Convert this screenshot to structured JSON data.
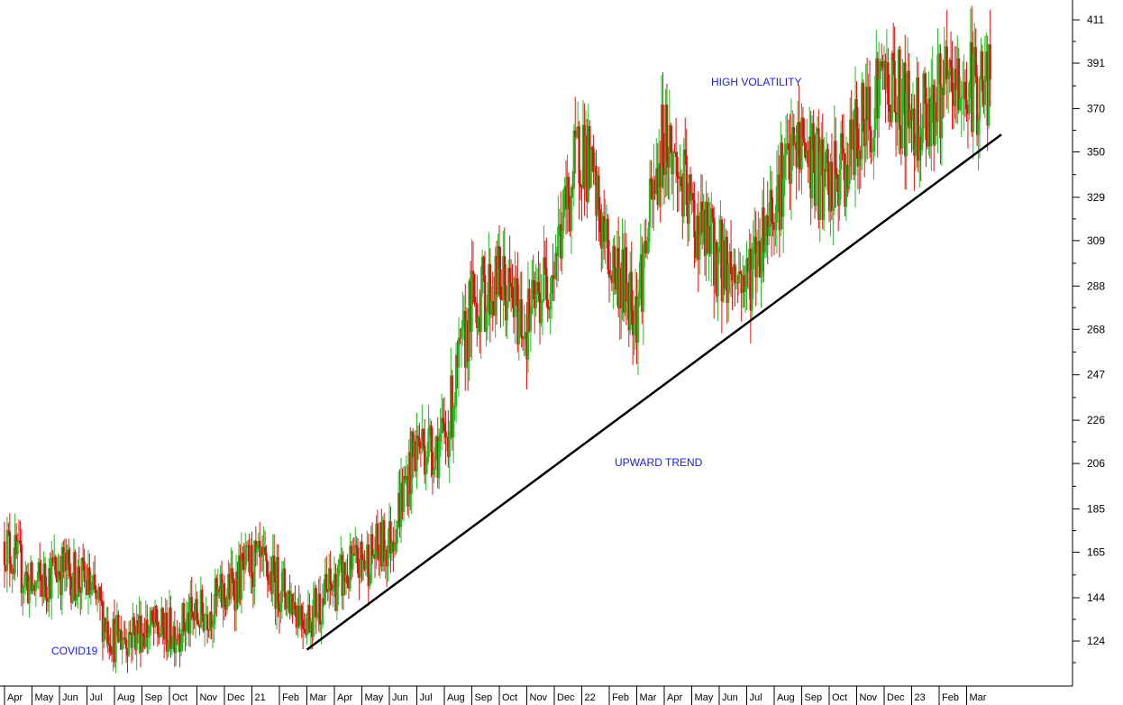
{
  "chart_data": {
    "type": "candlestick",
    "y_axis": {
      "position": "right",
      "ticks": [
        124,
        144,
        165,
        185,
        206,
        226,
        247,
        268,
        288,
        309,
        329,
        350,
        370,
        391,
        411
      ],
      "range": [
        110,
        425
      ]
    },
    "x_axis": {
      "labels": [
        "Apr",
        "May",
        "Jun",
        "Jul",
        "Aug",
        "Sep",
        "Oct",
        "Nov",
        "Dec",
        "21",
        "Feb",
        "Mar",
        "Apr",
        "May",
        "Jun",
        "Jul",
        "Aug",
        "Sep",
        "Oct",
        "Nov",
        "Dec",
        "22",
        "Feb",
        "Mar",
        "Apr",
        "May",
        "Jun",
        "Jul",
        "Aug",
        "Sep",
        "Oct",
        "Nov",
        "Dec",
        "23",
        "Feb",
        "Mar"
      ]
    },
    "approx_close_path": [
      [
        0,
        170
      ],
      [
        1,
        148
      ],
      [
        2,
        158
      ],
      [
        3,
        150
      ],
      [
        4,
        125
      ],
      [
        5,
        130
      ],
      [
        6,
        128
      ],
      [
        7,
        135
      ],
      [
        8,
        145
      ],
      [
        9,
        160
      ],
      [
        10,
        150
      ],
      [
        11,
        135
      ],
      [
        12,
        150
      ],
      [
        13,
        160
      ],
      [
        14,
        170
      ],
      [
        15,
        215
      ],
      [
        16,
        215
      ],
      [
        17,
        280
      ],
      [
        18,
        290
      ],
      [
        19,
        270
      ],
      [
        20,
        300
      ],
      [
        21,
        355
      ],
      [
        22,
        300
      ],
      [
        23,
        280
      ],
      [
        24,
        360
      ],
      [
        25,
        320
      ],
      [
        26,
        300
      ],
      [
        27,
        290
      ],
      [
        28,
        330
      ],
      [
        29,
        355
      ],
      [
        30,
        330
      ],
      [
        31,
        355
      ],
      [
        32,
        385
      ],
      [
        33,
        365
      ],
      [
        34,
        375
      ],
      [
        35,
        380
      ]
    ],
    "trendline": {
      "from": [
        11,
        120
      ],
      "to": [
        36,
        358
      ]
    },
    "colors": {
      "up": "#22bb22",
      "down": "#dd1111",
      "trendline": "#000000",
      "annotation": "#1a1aee"
    },
    "annotations": {
      "covid": "COVID19",
      "trend": "UPWARD TREND",
      "volatility": "HIGH VOLATILITY"
    }
  }
}
